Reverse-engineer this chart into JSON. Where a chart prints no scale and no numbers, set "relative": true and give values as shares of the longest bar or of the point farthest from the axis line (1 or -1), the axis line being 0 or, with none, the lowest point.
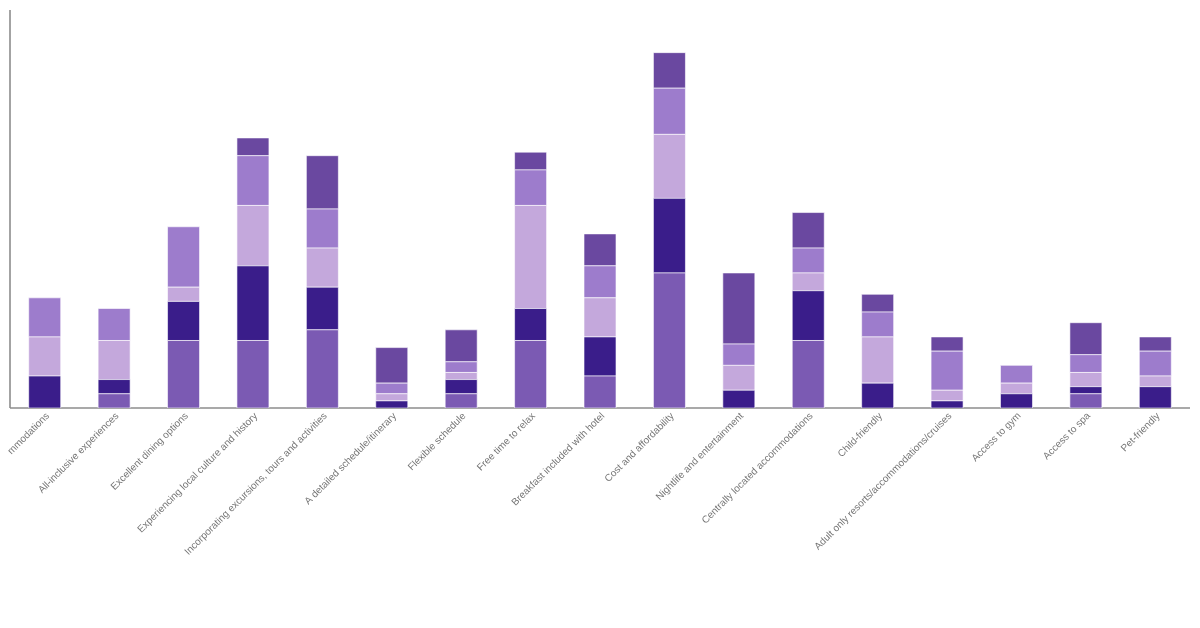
{
  "chart_data": {
    "type": "bar",
    "stacked": true,
    "relative": true,
    "categories": [
      "mmodations",
      "All-inclusive experiences",
      "Excellent dining options",
      "Experiencing local culture and history",
      "Incorporating excursions, tours and activities",
      "A detailed schedule/itinerary",
      "Flexible schedule",
      "Free time to relax",
      "Breakfast included with hotel",
      "Cost and affordability",
      "Nightlife and entertainment",
      "Centrally located accommodations",
      "Child-friendly",
      "Adult only resorts/accommodations/cruises",
      "Access to gym",
      "Access to spa",
      "Pet-friendly"
    ],
    "series": [
      {
        "color": "#7b5ab3",
        "values": [
          0,
          0.04,
          0.19,
          0.19,
          0.22,
          0,
          0.04,
          0.19,
          0.09,
          0.38,
          0,
          0.19,
          0,
          0,
          0,
          0.04,
          0
        ]
      },
      {
        "color": "#3a1d8a",
        "values": [
          0.09,
          0.04,
          0.11,
          0.21,
          0.12,
          0.02,
          0.04,
          0.09,
          0.11,
          0.21,
          0.05,
          0.14,
          0.07,
          0.02,
          0.04,
          0.02,
          0.06
        ]
      },
      {
        "color": "#c4a8dc",
        "values": [
          0.11,
          0.11,
          0.04,
          0.17,
          0.11,
          0.02,
          0.02,
          0.29,
          0.11,
          0.18,
          0.07,
          0.05,
          0.13,
          0.03,
          0.03,
          0.04,
          0.03
        ]
      },
      {
        "color": "#9d7ccc",
        "values": [
          0.11,
          0.09,
          0.17,
          0.14,
          0.11,
          0.03,
          0.03,
          0.1,
          0.09,
          0.13,
          0.06,
          0.07,
          0.07,
          0.11,
          0.05,
          0.05,
          0.07
        ]
      },
      {
        "color": "#6a48a0",
        "values": [
          0,
          0,
          0,
          0.05,
          0.15,
          0.1,
          0.09,
          0.05,
          0.09,
          0.1,
          0.2,
          0.1,
          0.05,
          0.04,
          0,
          0.09,
          0.04
        ]
      }
    ],
    "grid": false
  }
}
